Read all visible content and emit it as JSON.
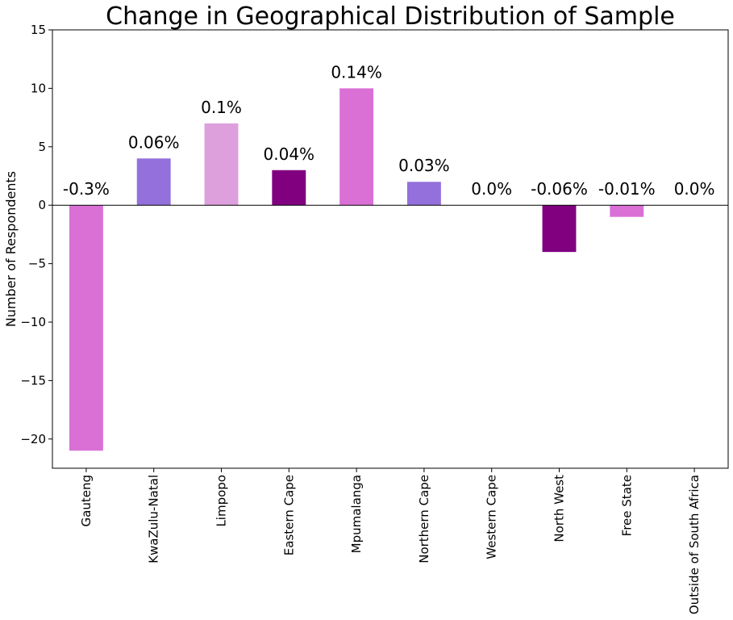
{
  "chart_data": {
    "type": "bar",
    "title": "Change in Geographical Distribution of Sample",
    "xlabel": "",
    "ylabel": "Number of Respondents",
    "ylim": [
      -22.5,
      15
    ],
    "yticks": [
      15,
      10,
      5,
      0,
      -5,
      -10,
      -15,
      -20
    ],
    "ytick_labels": [
      "15",
      "10",
      "5",
      "0",
      "−5",
      "−10",
      "−15",
      "−20"
    ],
    "grid": false,
    "legend": "none",
    "categories": [
      "Gauteng",
      "KwaZulu-Natal",
      "Limpopo",
      "Eastern Cape",
      "Mpumalanga",
      "Northern Cape",
      "Western Cape",
      "North West",
      "Free State",
      "Outside of South Africa"
    ],
    "values": [
      -21,
      4,
      7,
      3,
      10,
      2,
      0,
      -4,
      -1,
      0
    ],
    "data_labels": [
      "-0.3%",
      "0.06%",
      "0.1%",
      "0.04%",
      "0.14%",
      "0.03%",
      "0.0%",
      "-0.06%",
      "-0.01%",
      "0.0%"
    ],
    "colors": [
      "#da70d6",
      "#9370db",
      "#dda0dd",
      "#800080",
      "#da70d6",
      "#9370db",
      "#dda0dd",
      "#800080",
      "#da70d6",
      "#9370db"
    ]
  }
}
